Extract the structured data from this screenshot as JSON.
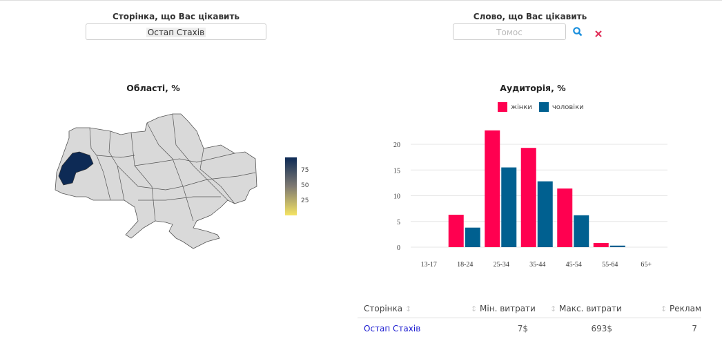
{
  "page_filter": {
    "label": "Сторінка, що Вас цікавить",
    "value": "Остап Стахів"
  },
  "word_filter": {
    "label": "Слово, що Вас цікавить",
    "placeholder": "Томос",
    "search_icon": "search-icon",
    "clear_icon": "close-icon"
  },
  "map": {
    "title": "Області, %",
    "highlighted_region": "Львівська",
    "colorbar": {
      "ticks": [
        "75",
        "50",
        "25"
      ],
      "low_color": "#f5e463",
      "high_color": "#0d2a55"
    }
  },
  "chart_data": {
    "type": "bar",
    "title": "Аудиторія, %",
    "xlabel": "",
    "ylabel": "",
    "categories": [
      "13-17",
      "18-24",
      "25-34",
      "35-44",
      "45-54",
      "55-64",
      "65+"
    ],
    "series": [
      {
        "name": "жінки",
        "color": "#ff0050",
        "values": [
          0,
          6.3,
          22.7,
          19.3,
          11.4,
          0.8,
          0
        ]
      },
      {
        "name": "чоловіки",
        "color": "#006090",
        "values": [
          0,
          3.8,
          15.5,
          12.8,
          6.2,
          0.3,
          0
        ]
      }
    ],
    "yticks": [
      "0",
      "5",
      "10",
      "15",
      "20"
    ],
    "ylim": [
      0,
      24
    ],
    "grid": true,
    "legend": "top"
  },
  "table": {
    "headers": [
      "Сторінка",
      "Мін. витрати",
      "Макс. витрати",
      "Реклам"
    ],
    "rows": [
      {
        "page": "Остап Стахів",
        "min": "7$",
        "max": "693$",
        "ads": "7"
      }
    ]
  }
}
